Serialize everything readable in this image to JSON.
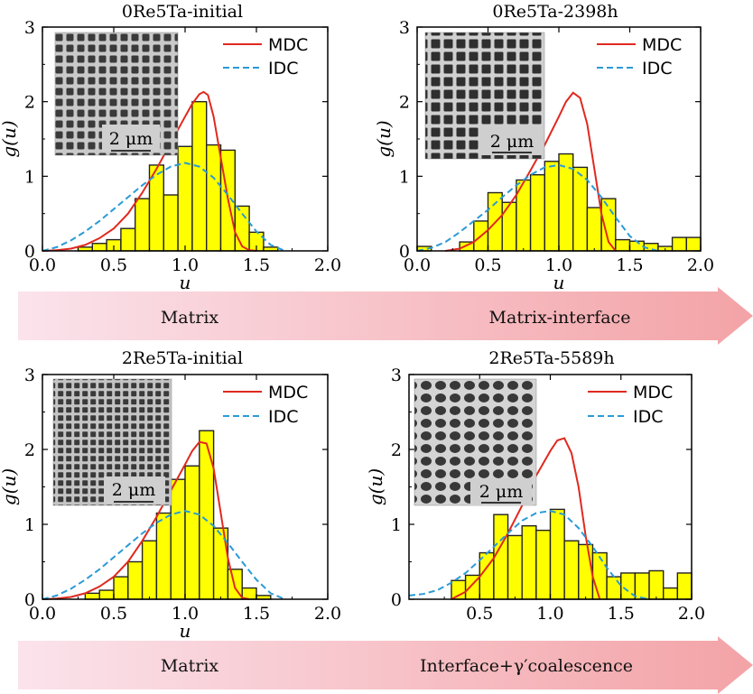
{
  "chart_data": [
    {
      "type": "bar",
      "title": "0Re5Ta-initial",
      "xlabel": "u",
      "ylabel": "g(u)",
      "xlim": [
        0,
        2
      ],
      "ylim": [
        0,
        3
      ],
      "x_ticks": [
        "0.0",
        "0.5",
        "1.0",
        "1.5",
        "2.0"
      ],
      "y_ticks": [
        "0",
        "1",
        "2",
        "3"
      ],
      "bin_width": 0.1,
      "bin_centers": [
        0.3,
        0.4,
        0.5,
        0.6,
        0.7,
        0.8,
        0.9,
        1.0,
        1.1,
        1.2,
        1.3,
        1.4,
        1.5,
        1.6
      ],
      "values": [
        0.05,
        0.1,
        0.15,
        0.3,
        0.7,
        1.15,
        0.75,
        1.4,
        2.0,
        1.42,
        1.35,
        0.6,
        0.25,
        0.05
      ],
      "series": [
        {
          "name": "MDC",
          "color": "#e0291f",
          "style": "solid",
          "x": [
            0.0,
            0.1,
            0.2,
            0.3,
            0.4,
            0.5,
            0.6,
            0.7,
            0.8,
            0.9,
            1.0,
            1.05,
            1.1,
            1.13,
            1.16,
            1.2,
            1.25,
            1.3,
            1.35,
            1.4,
            1.45,
            1.5
          ],
          "y": [
            0.0,
            0.01,
            0.03,
            0.08,
            0.17,
            0.3,
            0.5,
            0.78,
            1.1,
            1.45,
            1.8,
            1.97,
            2.1,
            2.13,
            2.09,
            1.8,
            1.25,
            0.7,
            0.25,
            0.06,
            0.01,
            0.0
          ]
        },
        {
          "name": "IDC",
          "color": "#2a9ad6",
          "style": "dashed",
          "x": [
            0.0,
            0.1,
            0.2,
            0.3,
            0.4,
            0.5,
            0.6,
            0.7,
            0.8,
            0.9,
            1.0,
            1.1,
            1.2,
            1.3,
            1.4,
            1.5,
            1.6,
            1.7
          ],
          "y": [
            0.0,
            0.05,
            0.14,
            0.26,
            0.4,
            0.56,
            0.72,
            0.88,
            1.02,
            1.13,
            1.18,
            1.13,
            0.98,
            0.75,
            0.5,
            0.26,
            0.08,
            0.0
          ]
        }
      ],
      "legend": "top-right",
      "inset": {
        "scale_label": "2 μm"
      }
    },
    {
      "type": "bar",
      "title": "0Re5Ta-2398h",
      "xlabel": "u",
      "ylabel": "g(u)",
      "xlim": [
        0,
        2
      ],
      "ylim": [
        0,
        3
      ],
      "x_ticks": [
        "0.0",
        "0.5",
        "1.0",
        "1.5",
        "2.0"
      ],
      "y_ticks": [
        "0",
        "1",
        "2",
        "3"
      ],
      "bin_width": 0.1,
      "bin_centers": [
        0.05,
        0.35,
        0.45,
        0.55,
        0.65,
        0.75,
        0.85,
        0.95,
        1.05,
        1.15,
        1.25,
        1.35,
        1.45,
        1.55,
        1.65,
        1.75,
        1.85,
        1.95
      ],
      "values": [
        0.06,
        0.12,
        0.4,
        0.78,
        0.65,
        0.95,
        1.02,
        1.2,
        1.3,
        1.12,
        0.58,
        0.7,
        0.15,
        0.13,
        0.1,
        0.06,
        0.18,
        0.18
      ],
      "series": [
        {
          "name": "MDC",
          "color": "#e0291f",
          "style": "solid",
          "x": [
            0.2,
            0.3,
            0.4,
            0.5,
            0.6,
            0.7,
            0.8,
            0.9,
            1.0,
            1.05,
            1.1,
            1.15,
            1.2,
            1.25,
            1.3,
            1.35,
            1.4
          ],
          "y": [
            0.0,
            0.03,
            0.12,
            0.28,
            0.48,
            0.75,
            1.08,
            1.42,
            1.8,
            2.0,
            2.12,
            2.05,
            1.7,
            1.1,
            0.5,
            0.12,
            0.0
          ]
        },
        {
          "name": "IDC",
          "color": "#2a9ad6",
          "style": "dashed",
          "x": [
            0.0,
            0.1,
            0.2,
            0.3,
            0.4,
            0.5,
            0.6,
            0.7,
            0.8,
            0.9,
            1.0,
            1.1,
            1.2,
            1.3,
            1.4,
            1.5,
            1.6,
            1.7
          ],
          "y": [
            0.0,
            0.04,
            0.12,
            0.25,
            0.4,
            0.55,
            0.72,
            0.88,
            1.02,
            1.12,
            1.15,
            1.1,
            0.95,
            0.72,
            0.45,
            0.2,
            0.05,
            0.0
          ]
        }
      ],
      "legend": "top-right",
      "inset": {
        "scale_label": "2 μm"
      }
    },
    {
      "type": "bar",
      "title": "2Re5Ta-initial",
      "xlabel": "u",
      "ylabel": "g(u)",
      "xlim": [
        0,
        2
      ],
      "ylim": [
        0,
        3
      ],
      "x_ticks": [
        "0.0",
        "0.5",
        "1.0",
        "1.5",
        "2.0"
      ],
      "y_ticks": [
        "0",
        "1",
        "2",
        "3"
      ],
      "bin_width": 0.1,
      "bin_centers": [
        0.35,
        0.45,
        0.55,
        0.65,
        0.75,
        0.85,
        0.95,
        1.05,
        1.15,
        1.25,
        1.35,
        1.45,
        1.55
      ],
      "values": [
        0.08,
        0.12,
        0.3,
        0.5,
        0.78,
        1.15,
        1.6,
        1.78,
        2.25,
        0.95,
        0.4,
        0.15,
        0.05
      ],
      "series": [
        {
          "name": "MDC",
          "color": "#e0291f",
          "style": "solid",
          "x": [
            0.0,
            0.1,
            0.2,
            0.3,
            0.4,
            0.5,
            0.6,
            0.7,
            0.8,
            0.9,
            1.0,
            1.05,
            1.1,
            1.15,
            1.2,
            1.25,
            1.3,
            1.35,
            1.4,
            1.45
          ],
          "y": [
            0.0,
            0.01,
            0.03,
            0.08,
            0.17,
            0.3,
            0.5,
            0.78,
            1.1,
            1.45,
            1.8,
            1.98,
            2.1,
            2.08,
            1.75,
            1.15,
            0.55,
            0.15,
            0.02,
            0.0
          ]
        },
        {
          "name": "IDC",
          "color": "#2a9ad6",
          "style": "dashed",
          "x": [
            0.0,
            0.1,
            0.2,
            0.3,
            0.4,
            0.5,
            0.6,
            0.7,
            0.8,
            0.9,
            1.0,
            1.1,
            1.2,
            1.3,
            1.4,
            1.5,
            1.6,
            1.7
          ],
          "y": [
            0.0,
            0.05,
            0.14,
            0.26,
            0.4,
            0.56,
            0.72,
            0.88,
            1.02,
            1.13,
            1.18,
            1.13,
            0.98,
            0.75,
            0.5,
            0.26,
            0.08,
            0.0
          ]
        }
      ],
      "legend": "top-right",
      "inset": {
        "scale_label": "2 μm"
      }
    },
    {
      "type": "bar",
      "title": "2Re5Ta-5589h",
      "xlabel": "",
      "ylabel": "g(u)",
      "xlim": [
        0,
        2
      ],
      "ylim": [
        0,
        3
      ],
      "x_ticks": [
        "0.5",
        "1.0",
        "1.5",
        "2.0"
      ],
      "y_ticks": [
        "0",
        "1",
        "2",
        "3"
      ],
      "bin_width": 0.1,
      "bin_centers": [
        0.35,
        0.45,
        0.55,
        0.65,
        0.75,
        0.85,
        0.95,
        1.05,
        1.15,
        1.25,
        1.35,
        1.45,
        1.55,
        1.65,
        1.75,
        1.85,
        1.95
      ],
      "values": [
        0.25,
        0.32,
        0.62,
        1.13,
        0.85,
        0.98,
        0.92,
        1.2,
        0.78,
        0.73,
        0.62,
        0.3,
        0.35,
        0.35,
        0.38,
        0.15,
        0.35
      ],
      "series": [
        {
          "name": "MDC",
          "color": "#e0291f",
          "style": "solid",
          "x": [
            0.3,
            0.4,
            0.5,
            0.6,
            0.7,
            0.8,
            0.9,
            1.0,
            1.05,
            1.1,
            1.15,
            1.2,
            1.25,
            1.3,
            1.35
          ],
          "y": [
            0.0,
            0.1,
            0.3,
            0.55,
            0.88,
            1.25,
            1.65,
            1.98,
            2.12,
            2.15,
            1.95,
            1.5,
            0.85,
            0.3,
            0.0
          ]
        },
        {
          "name": "IDC",
          "color": "#2a9ad6",
          "style": "dashed",
          "x": [
            0.0,
            0.1,
            0.2,
            0.3,
            0.4,
            0.5,
            0.6,
            0.7,
            0.8,
            0.9,
            1.0,
            1.1,
            1.2,
            1.3,
            1.4,
            1.5,
            1.6,
            1.7
          ],
          "y": [
            0.05,
            0.07,
            0.12,
            0.22,
            0.35,
            0.52,
            0.7,
            0.88,
            1.05,
            1.15,
            1.18,
            1.13,
            0.95,
            0.7,
            0.42,
            0.18,
            0.04,
            0.0
          ]
        }
      ],
      "legend": "top-right",
      "inset": {
        "scale_label": "2 μm"
      }
    }
  ],
  "arrows": [
    {
      "left_label": "Matrix",
      "right_label": "Matrix-interface"
    },
    {
      "left_label": "Matrix",
      "right_label": "Interface+γ′coalescence"
    }
  ],
  "colors": {
    "bar_fill": "#ffff00",
    "bar_stroke": "#222222",
    "arrow_start": "#fbe3ec",
    "arrow_end": "#f3a3a6"
  }
}
